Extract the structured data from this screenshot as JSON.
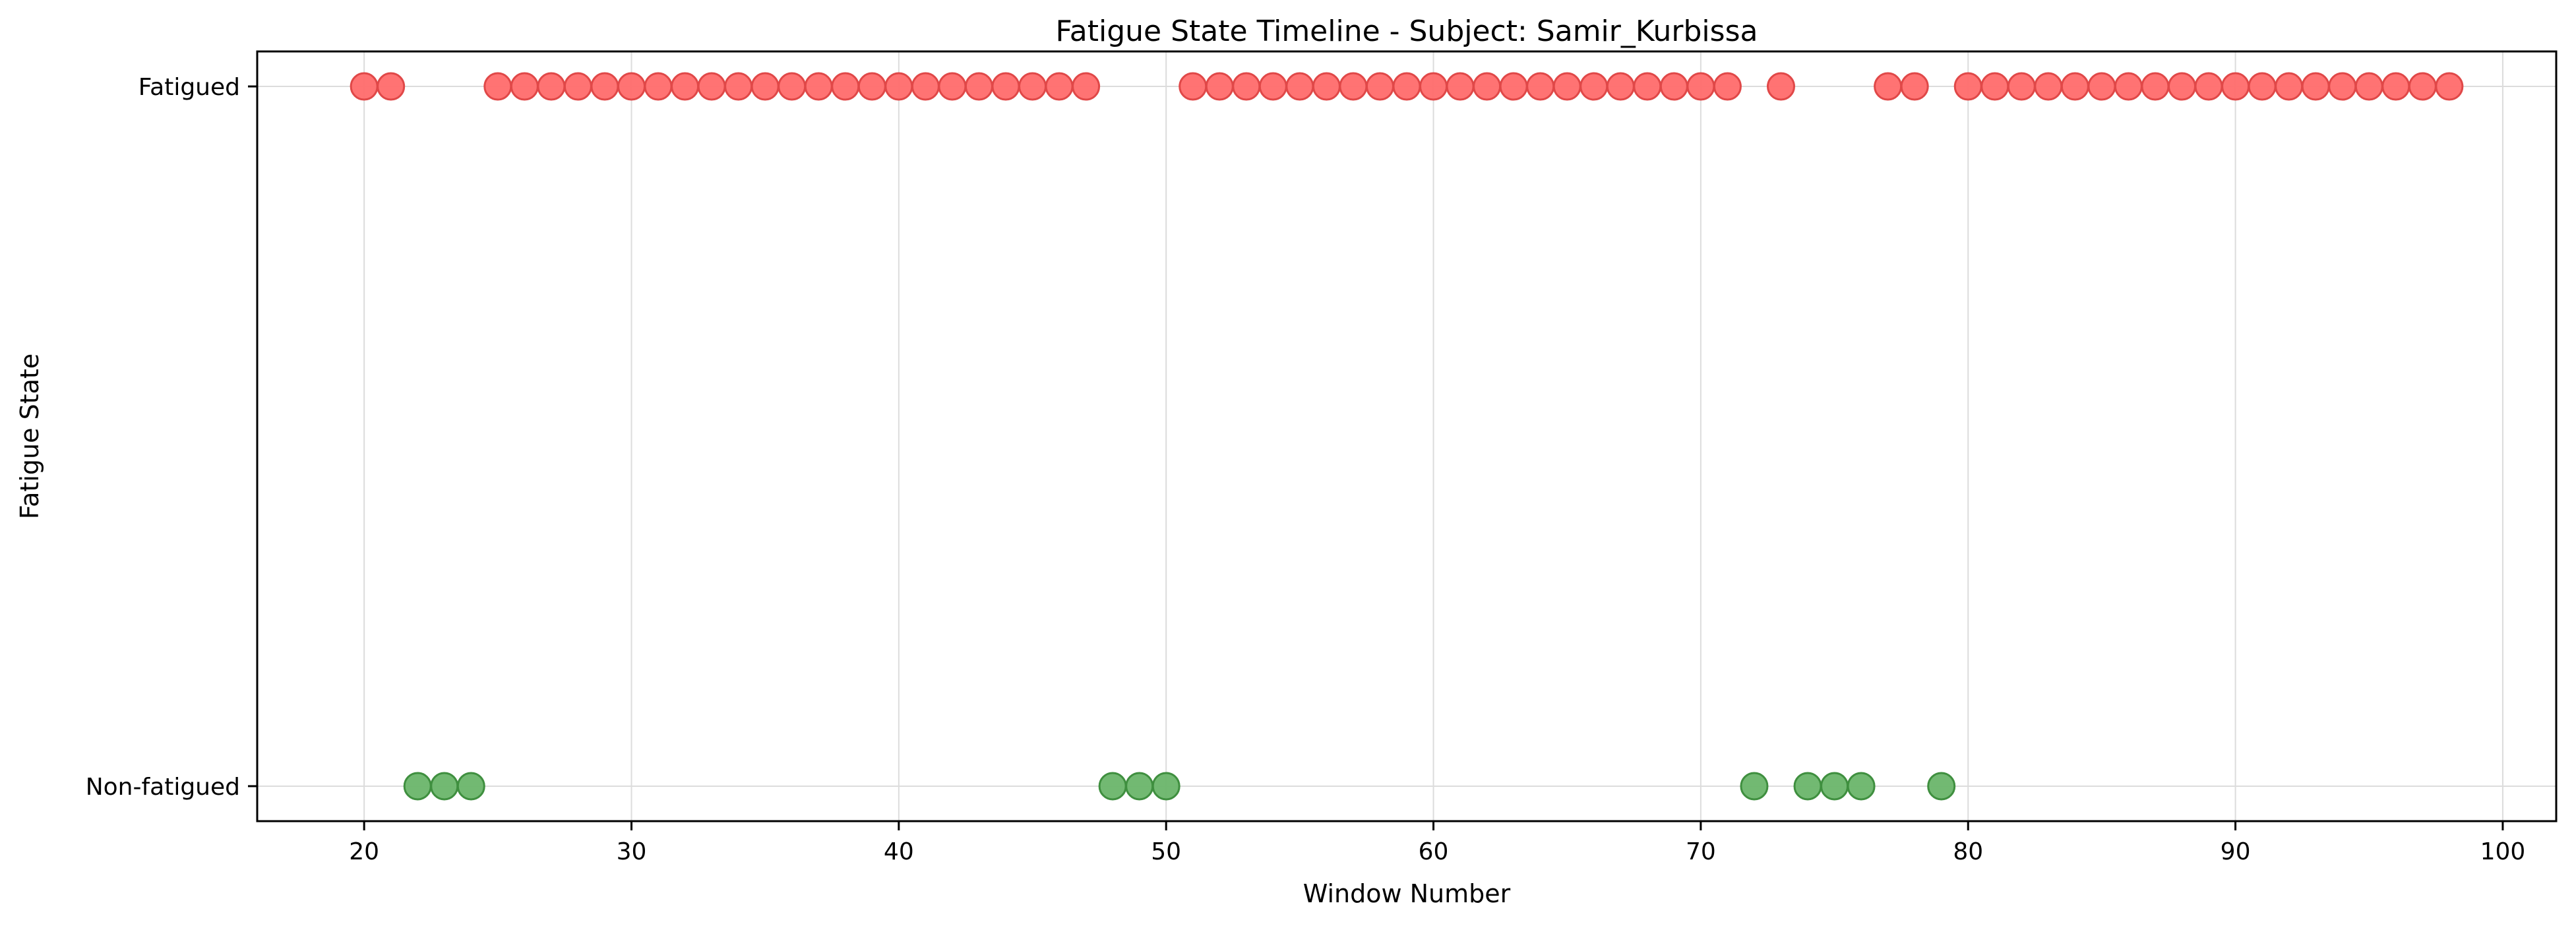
{
  "chart_data": {
    "type": "scatter",
    "title": "Fatigue State Timeline - Subject: Samir_Kurbissa",
    "xlabel": "Window Number",
    "ylabel": "Fatigue State",
    "xlim": [
      16,
      102
    ],
    "ylim": [
      -0.05,
      1.05
    ],
    "x_ticks": [
      20,
      30,
      40,
      50,
      60,
      70,
      80,
      90,
      100
    ],
    "y_ticks": [
      {
        "value": 0,
        "label": "Non-fatigued"
      },
      {
        "value": 1,
        "label": "Fatigued"
      }
    ],
    "grid": true,
    "series": [
      {
        "state": 1,
        "color": "#ff6b6b",
        "edge_color": "#e04848",
        "x": [
          20,
          21,
          25,
          26,
          27,
          28,
          29,
          30,
          31,
          32,
          33,
          34,
          35,
          36,
          37,
          38,
          39,
          40,
          41,
          42,
          43,
          44,
          45,
          46,
          47,
          51,
          52,
          53,
          54,
          55,
          56,
          57,
          58,
          59,
          60,
          61,
          62,
          63,
          64,
          65,
          66,
          67,
          68,
          69,
          70,
          71,
          73,
          77,
          78,
          80,
          81,
          82,
          83,
          84,
          85,
          86,
          87,
          88,
          89,
          90,
          91,
          92,
          93,
          94,
          95,
          96,
          97,
          98
        ]
      },
      {
        "state": 0,
        "color": "#6ab56a",
        "edge_color": "#3f8f3f",
        "x": [
          22,
          23,
          24,
          48,
          49,
          50,
          72,
          74,
          75,
          76,
          79
        ]
      }
    ]
  }
}
